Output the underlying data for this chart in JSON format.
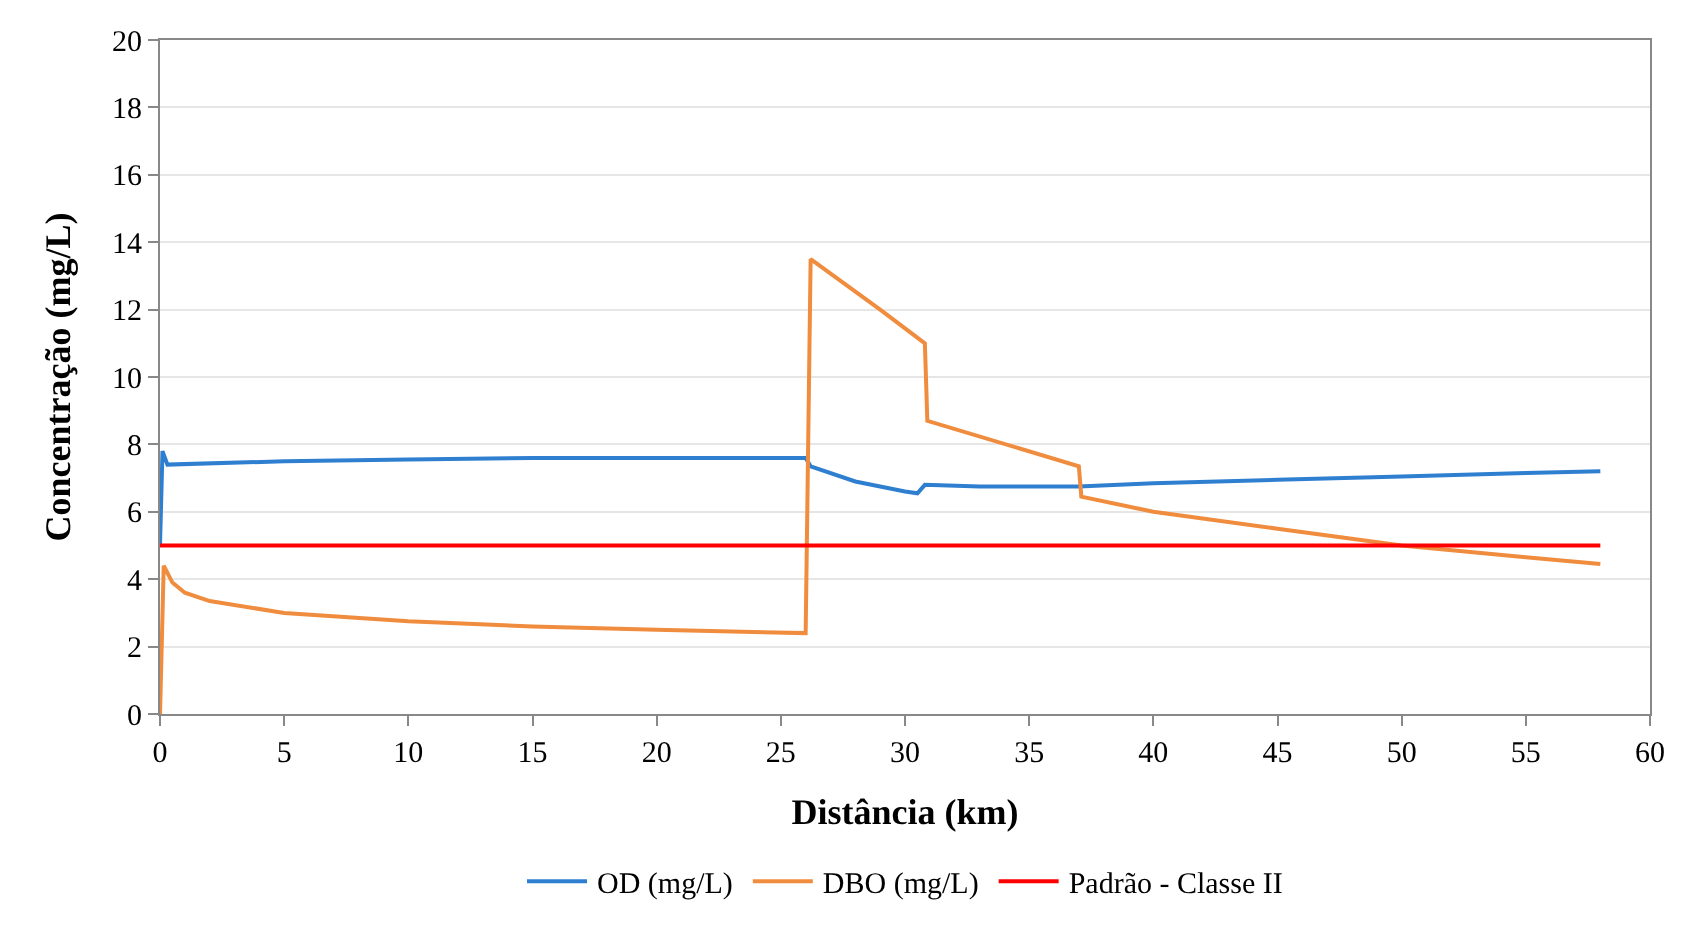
{
  "chart_data": {
    "type": "line",
    "xlabel": "Distância (km)",
    "ylabel": "Concentração (mg/L)",
    "xlim": [
      0,
      60
    ],
    "xticks": [
      0,
      5,
      10,
      15,
      20,
      25,
      30,
      35,
      40,
      45,
      50,
      55,
      60
    ],
    "ylim": [
      0,
      20
    ],
    "yticks": [
      0,
      2,
      4,
      6,
      8,
      10,
      12,
      14,
      16,
      18,
      20
    ],
    "grid": "y",
    "legend": "bottom",
    "marker": "none",
    "line_style": "solid",
    "series": [
      {
        "name": "OD (mg/L)",
        "color": "#2f7fd0",
        "x": [
          0,
          0.1,
          0.3,
          5,
          10,
          15,
          20,
          26,
          26.2,
          28,
          30,
          30.5,
          30.8,
          33,
          37,
          40,
          45,
          50,
          55,
          58
        ],
        "values": [
          5.0,
          7.8,
          7.4,
          7.5,
          7.55,
          7.6,
          7.6,
          7.6,
          7.35,
          6.9,
          6.6,
          6.55,
          6.8,
          6.75,
          6.75,
          6.85,
          6.95,
          7.05,
          7.15,
          7.2
        ]
      },
      {
        "name": "DBO (mg/L)",
        "color": "#f08c3e",
        "x": [
          0,
          0.15,
          0.5,
          1,
          2,
          5,
          10,
          15,
          20,
          26,
          26.2,
          29,
          30.8,
          30.9,
          37,
          37.1,
          40,
          45,
          50,
          55,
          58
        ],
        "values": [
          0,
          4.4,
          3.9,
          3.6,
          3.35,
          3.0,
          2.75,
          2.6,
          2.5,
          2.4,
          13.5,
          12.0,
          11.0,
          8.7,
          7.35,
          6.45,
          6.0,
          5.5,
          5.0,
          4.65,
          4.45
        ]
      },
      {
        "name": "Padrão - Classe II",
        "color": "#ff0000",
        "x": [
          0,
          58
        ],
        "values": [
          5,
          5
        ]
      }
    ]
  }
}
